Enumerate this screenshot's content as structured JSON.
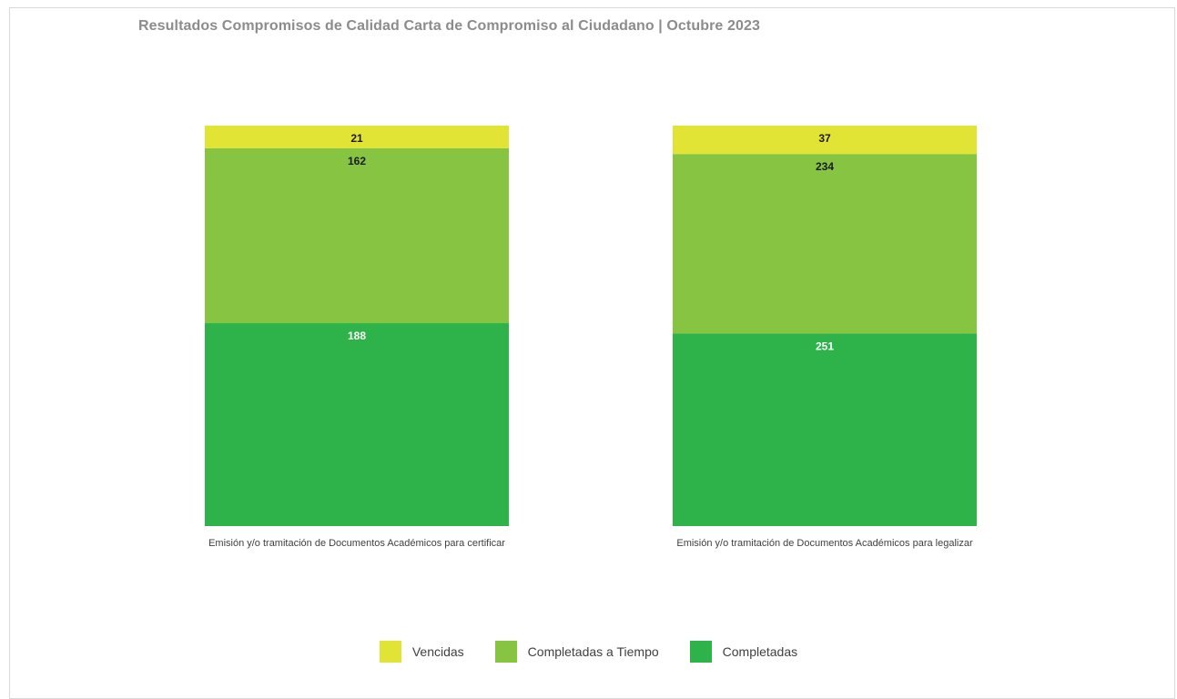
{
  "chart_data": {
    "type": "bar",
    "stacked": true,
    "title": "Resultados Compromisos de Calidad Carta de Compromiso al Ciudadano | Octubre 2023",
    "categories": [
      "Emisión y/o tramitación de Documentos Académicos para certificar",
      "Emisión y/o tramitación de Documentos Académicos para legalizar"
    ],
    "series": [
      {
        "name": "Completadas",
        "color": "#2db34a",
        "label_color": "#ffffff",
        "values": [
          188,
          251
        ]
      },
      {
        "name": "Completadas a Tiempo",
        "color": "#86c441",
        "label_color": "#1a1a1a",
        "values": [
          162,
          234
        ]
      },
      {
        "name": "Vencidas",
        "color": "#e1e434",
        "label_color": "#1a1a1a",
        "values": [
          21,
          37
        ]
      }
    ],
    "legend_order": [
      "Vencidas",
      "Completadas a Tiempo",
      "Completadas"
    ],
    "legend_position": "bottom",
    "normalized": true,
    "grid": false
  }
}
